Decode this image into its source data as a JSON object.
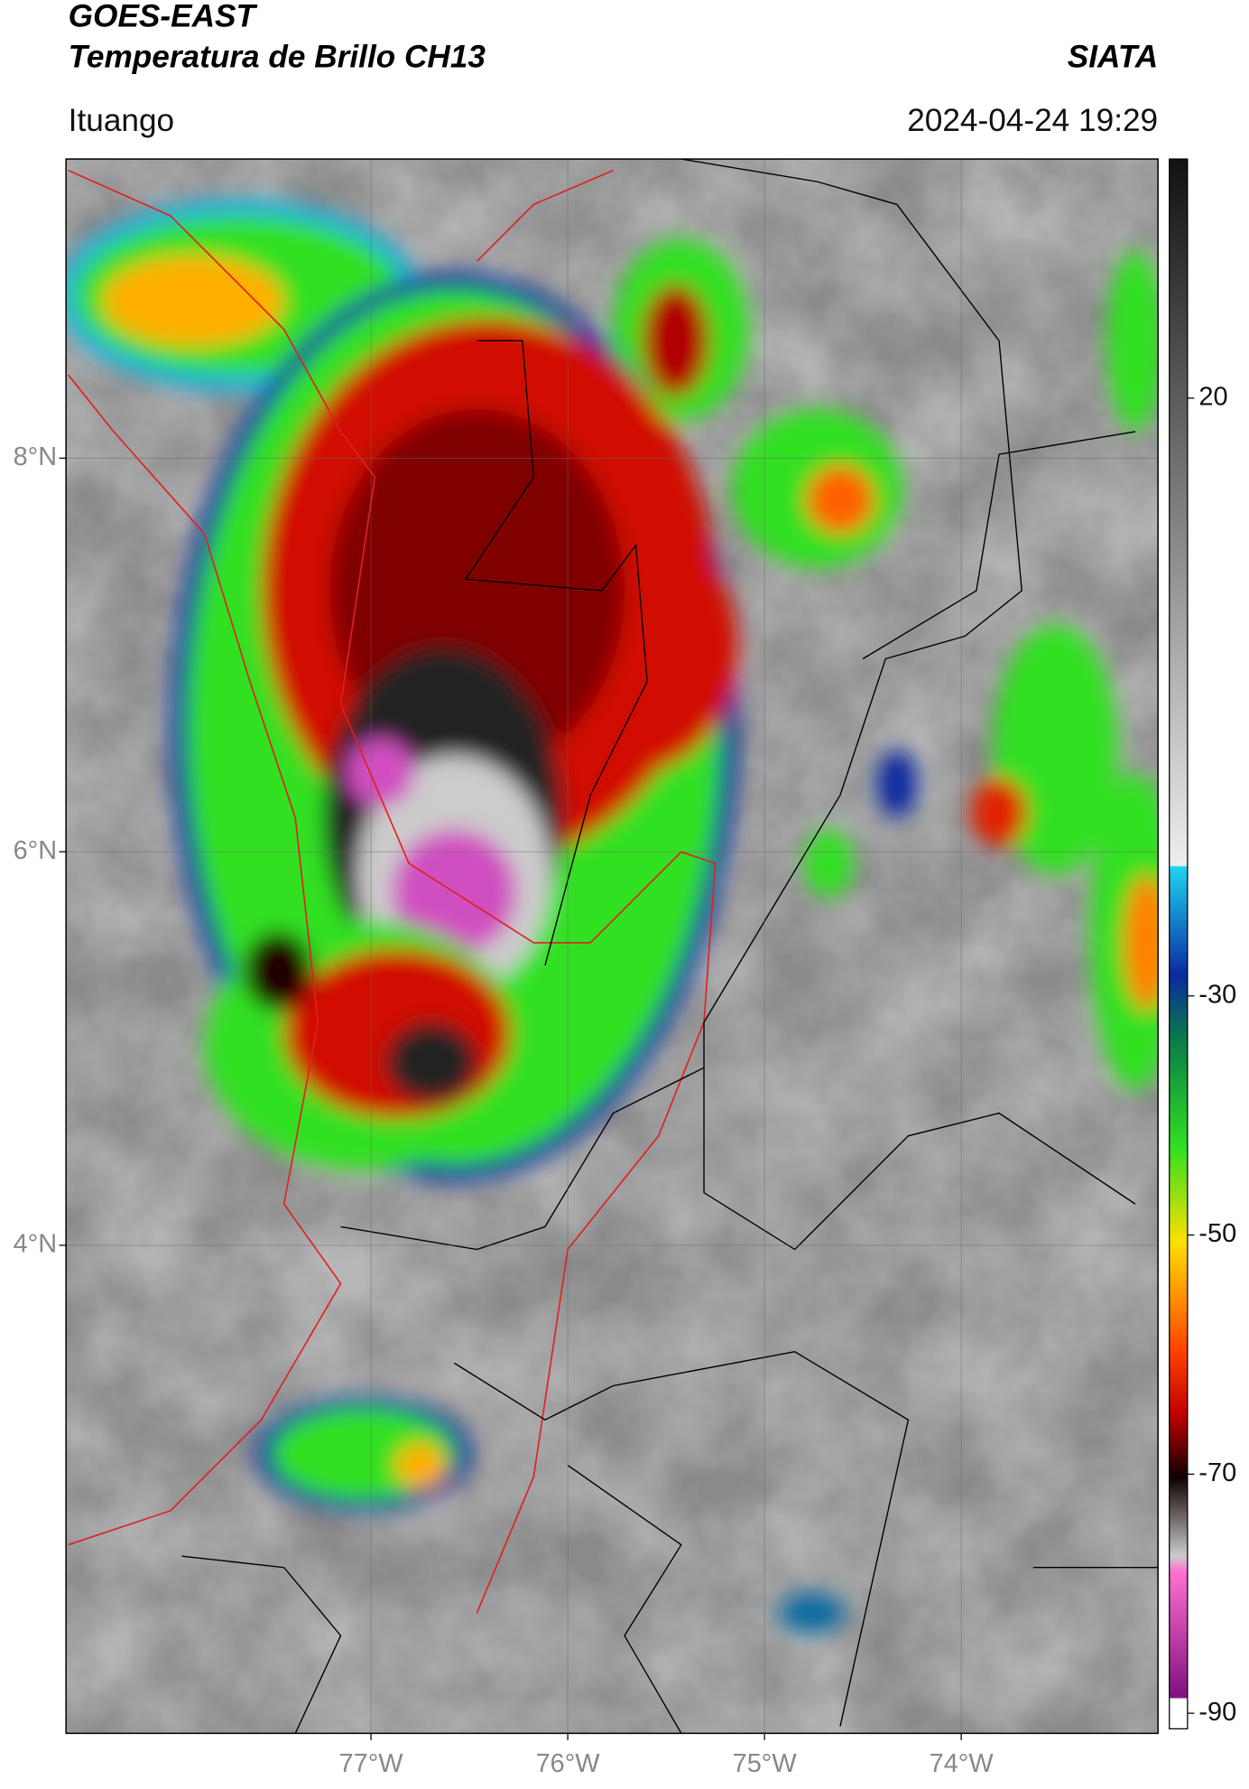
{
  "header": {
    "title": "GOES-EAST",
    "subtitle": "Temperatura de Brillo CH13",
    "source": "SIATA",
    "location": "Ituango",
    "datetime": "2024-04-24 19:29"
  },
  "map": {
    "lat_range": [
      1.52,
      9.52
    ],
    "lon_range": [
      -78.55,
      -73.0
    ],
    "lat_ticks": [
      {
        "value": 8,
        "label": "8°N"
      },
      {
        "value": 6,
        "label": "6°N"
      },
      {
        "value": 4,
        "label": "4°N"
      }
    ],
    "lon_ticks": [
      {
        "value": -77,
        "label": "77°W"
      },
      {
        "value": -76,
        "label": "76°W"
      },
      {
        "value": -75,
        "label": "75°W"
      },
      {
        "value": -74,
        "label": "74°W"
      }
    ]
  },
  "colorbar": {
    "range": [
      -91.3,
      40
    ],
    "ticks": [
      20,
      -30,
      -50,
      -70,
      -90
    ]
  }
}
